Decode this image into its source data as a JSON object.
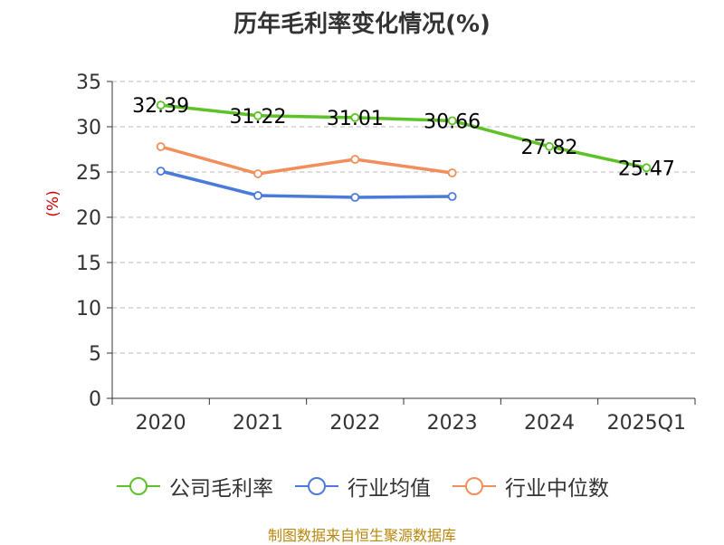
{
  "title": "历年毛利率变化情况(%)",
  "source": "制图数据来自恒生聚源数据库",
  "colors": {
    "axis": "#333333",
    "grid": "#bbbbbb",
    "ylabel": "#cc0000",
    "label": "#000000"
  },
  "chart_data": {
    "type": "line",
    "title": "历年毛利率变化情况(%)",
    "ylabel": "(%)",
    "xlabel": "",
    "categories": [
      "2020",
      "2021",
      "2022",
      "2023",
      "2024",
      "2025Q1"
    ],
    "ylim": [
      0,
      35
    ],
    "yticks": [
      0,
      5,
      10,
      15,
      20,
      25,
      30,
      35
    ],
    "grid": true,
    "legend_position": "bottom",
    "series": [
      {
        "name": "公司毛利率",
        "color": "#5dc228",
        "values": [
          32.39,
          31.22,
          31.01,
          30.66,
          27.82,
          25.47
        ],
        "data_labels": [
          "32.39",
          "31.22",
          "31.01",
          "30.66",
          "27.82",
          "25.47"
        ]
      },
      {
        "name": "行业均值",
        "color": "#4a7bd8",
        "values": [
          25.1,
          22.4,
          22.2,
          22.3,
          null,
          null
        ]
      },
      {
        "name": "行业中位数",
        "color": "#f28e5b",
        "values": [
          27.8,
          24.8,
          26.4,
          24.9,
          null,
          null
        ]
      }
    ]
  }
}
